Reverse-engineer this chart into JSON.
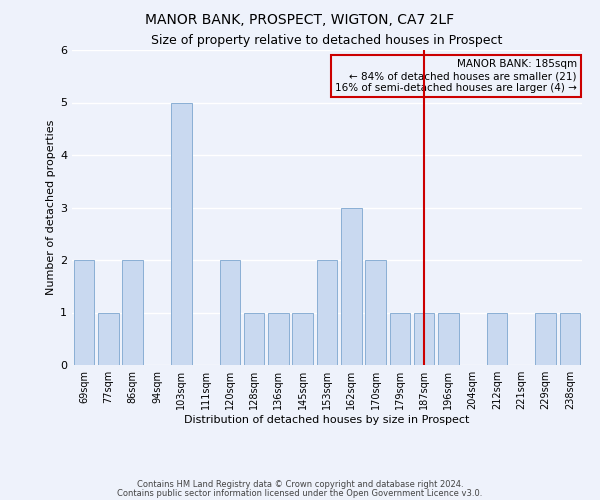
{
  "title": "MANOR BANK, PROSPECT, WIGTON, CA7 2LF",
  "subtitle": "Size of property relative to detached houses in Prospect",
  "xlabel": "Distribution of detached houses by size in Prospect",
  "ylabel": "Number of detached properties",
  "bins": [
    "69sqm",
    "77sqm",
    "86sqm",
    "94sqm",
    "103sqm",
    "111sqm",
    "120sqm",
    "128sqm",
    "136sqm",
    "145sqm",
    "153sqm",
    "162sqm",
    "170sqm",
    "179sqm",
    "187sqm",
    "196sqm",
    "204sqm",
    "212sqm",
    "221sqm",
    "229sqm",
    "238sqm"
  ],
  "values": [
    2,
    1,
    2,
    0,
    5,
    0,
    2,
    1,
    1,
    1,
    2,
    3,
    2,
    1,
    1,
    1,
    0,
    1,
    0,
    1,
    1
  ],
  "bar_color": "#c9d9f0",
  "bar_edge_color": "#8aafd4",
  "marker_value": "187sqm",
  "marker_color": "#cc0000",
  "annotation_title": "MANOR BANK: 185sqm",
  "annotation_line1": "← 84% of detached houses are smaller (21)",
  "annotation_line2": "16% of semi-detached houses are larger (4) →",
  "ylim": [
    0,
    6
  ],
  "yticks": [
    0,
    1,
    2,
    3,
    4,
    5,
    6
  ],
  "footer1": "Contains HM Land Registry data © Crown copyright and database right 2024.",
  "footer2": "Contains public sector information licensed under the Open Government Licence v3.0.",
  "bg_color": "#eef2fb",
  "title_fontsize": 10,
  "subtitle_fontsize": 9,
  "tick_fontsize": 7,
  "ylabel_fontsize": 8,
  "xlabel_fontsize": 8,
  "annotation_fontsize": 7.5,
  "footer_fontsize": 6
}
